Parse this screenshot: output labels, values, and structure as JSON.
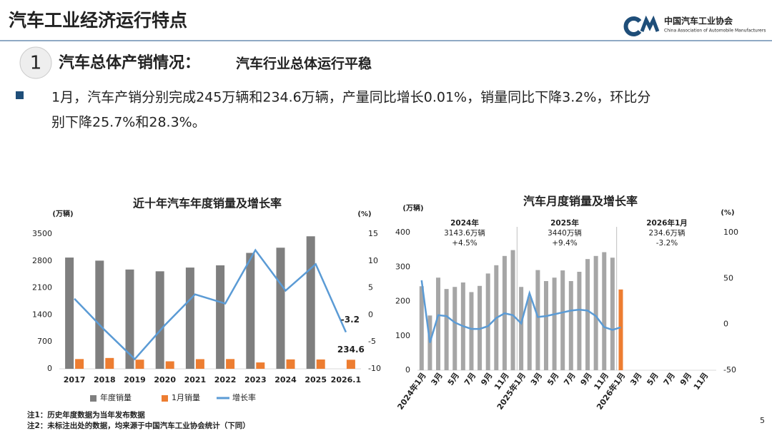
{
  "header": {
    "title": "汽车工业经济运行特点",
    "logo_name": "中国汽车工业协会",
    "logo_english": "China Association of Automobile Manufacturers"
  },
  "section": {
    "number": "1",
    "heading": "汽车总体产销情况：",
    "subheading": "汽车行业总体运行平稳"
  },
  "bullet": {
    "lines": [
      "1月，汽车产销分别完成245万辆和234.6万辆，产量同比增长0.01%，销量同比下降3.2%，环比分",
      "别下降25.7%和28.3%。"
    ]
  },
  "chart_data": [
    {
      "type": "bar",
      "title": "近十年汽车年度销量及增长率",
      "y_label": "(万辆)",
      "y2_label": "(%)",
      "bar_mode": "group",
      "legend": "bottom",
      "categories": [
        "2017",
        "2018",
        "2019",
        "2020",
        "2021",
        "2022",
        "2023",
        "2024",
        "2025",
        "2026.1"
      ],
      "series": [
        {
          "name": "年度销量",
          "color": "#7f7f7f",
          "values": [
            2888,
            2808,
            2577,
            2531,
            2628,
            2686,
            3009,
            3144,
            3440,
            null
          ]
        },
        {
          "name": "1月销量",
          "color": "#ed7d31",
          "values": [
            253,
            281,
            237,
            194,
            250,
            253,
            165,
            244,
            242,
            234.6
          ],
          "value_labels": [
            null,
            null,
            null,
            null,
            null,
            null,
            null,
            null,
            null,
            "234.6"
          ]
        },
        {
          "name": "增长率",
          "type": "line",
          "axis": "y2",
          "color": "#5b9bd5",
          "values": [
            3,
            -2.8,
            -8.2,
            -1.9,
            3.8,
            2.1,
            12,
            4.5,
            9.4,
            -3.2
          ],
          "value_labels": [
            null,
            null,
            null,
            null,
            null,
            null,
            null,
            null,
            null,
            "-3.2"
          ]
        }
      ],
      "ylim": [
        0,
        3500
      ],
      "yticks": [
        0,
        700,
        1400,
        2100,
        2800,
        3500
      ],
      "y2lim": [
        -10,
        15
      ],
      "y2ticks": [
        -10,
        -5,
        0,
        5,
        10,
        15
      ]
    },
    {
      "type": "bar",
      "title": "汽车月度销量及增长率",
      "y_label": "(万辆)",
      "y2_label": "(%)",
      "bar_mode": "overlay",
      "categories": [
        "2024年1月",
        null,
        "3月",
        null,
        "5月",
        null,
        "7月",
        null,
        "9月",
        null,
        "11月",
        null,
        "2025年1月",
        null,
        "3月",
        null,
        "5月",
        null,
        "7月",
        null,
        "9月",
        null,
        "11月",
        null,
        "2026年1月",
        null,
        "3月",
        null,
        "5月",
        null,
        "7月",
        null,
        "9月",
        null,
        "11月",
        null
      ],
      "series": [
        {
          "color": "#a6a6a6",
          "values": [
            244,
            159,
            269,
            236,
            242,
            255,
            227,
            245,
            281,
            305,
            332,
            349,
            242,
            213,
            291,
            259,
            269,
            290,
            259,
            286,
            323,
            332,
            343,
            327,
            null,
            null,
            null,
            null,
            null,
            null,
            null,
            null,
            null,
            null,
            null,
            null
          ]
        },
        {
          "color": "#ed7d31",
          "values": [
            null,
            null,
            null,
            null,
            null,
            null,
            null,
            null,
            null,
            null,
            null,
            null,
            null,
            null,
            null,
            null,
            null,
            null,
            null,
            null,
            null,
            null,
            null,
            null,
            234.6,
            null,
            null,
            null,
            null,
            null,
            null,
            null,
            null,
            null,
            null,
            null
          ]
        },
        {
          "type": "line",
          "axis": "y2",
          "color": "#5b9bd5",
          "values": [
            48,
            -20,
            10,
            9,
            2,
            -2,
            -5,
            -5,
            -2,
            7,
            12,
            10,
            1,
            34,
            8,
            9,
            11,
            13,
            15,
            16,
            15,
            9,
            -3,
            -6,
            -3.2,
            null,
            null,
            null,
            null,
            null,
            null,
            null,
            null,
            null,
            null,
            null
          ]
        }
      ],
      "ylim": [
        0,
        400
      ],
      "yticks": [
        0,
        100,
        200,
        300,
        400
      ],
      "y2lim": [
        -50,
        100
      ],
      "y2ticks": [
        -50,
        0,
        50,
        100
      ],
      "annotations": [
        {
          "text": [
            "2024年",
            "3143.6万辆",
            "+4.5%"
          ],
          "colors": [
            "#333333",
            "#333333",
            "#333333"
          ]
        },
        {
          "text": [
            "2025年",
            "3440万辆",
            "+9.4%"
          ],
          "colors": [
            "#333333",
            "#333333",
            "#333333"
          ]
        },
        {
          "text": [
            "2026年1月",
            "234.6万辆",
            "-3.2%"
          ],
          "colors": [
            "#333333",
            "#333333",
            "#e53935"
          ]
        }
      ]
    }
  ],
  "notes": [
    "注1：历史年度数据为当年发布数据",
    "注2：未标注出处的数据，均来源于中国汽车工业协会统计（下同）"
  ],
  "page_number": "5"
}
